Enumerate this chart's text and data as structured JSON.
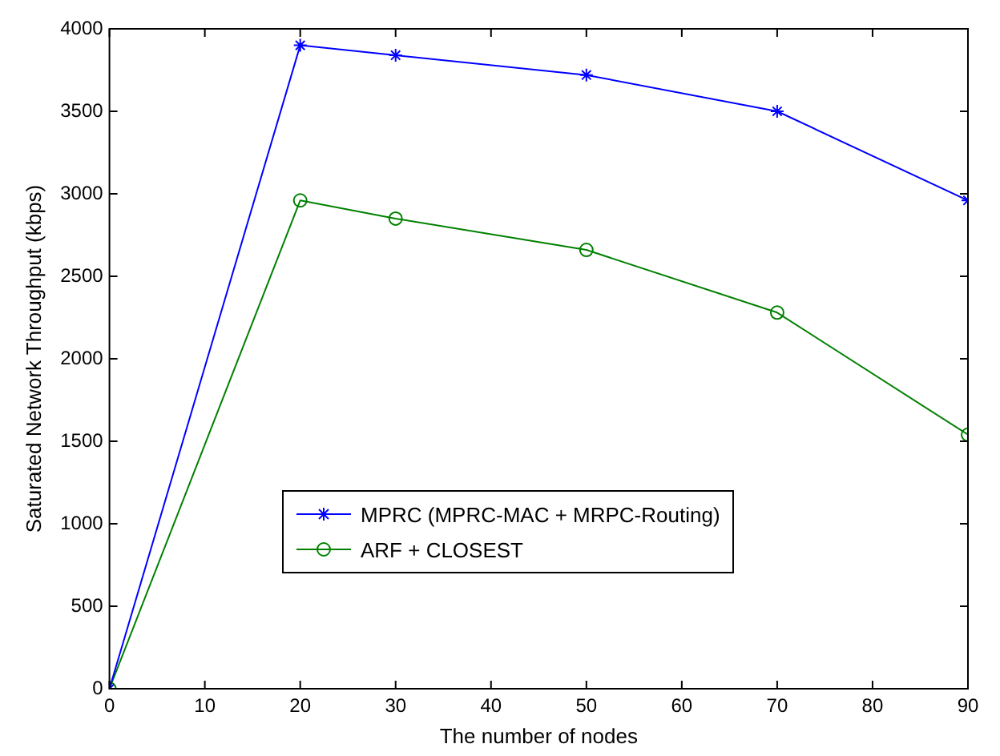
{
  "chart_data": {
    "type": "line",
    "xlabel": "The number of nodes",
    "ylabel": "Saturated Network Throughput (kbps)",
    "x": [
      0,
      20,
      30,
      50,
      70,
      90
    ],
    "xlim": [
      0,
      90
    ],
    "xticks": [
      0,
      10,
      20,
      30,
      40,
      50,
      60,
      70,
      80,
      90
    ],
    "ylim": [
      0,
      4000
    ],
    "yticks": [
      0,
      500,
      1000,
      1500,
      2000,
      2500,
      3000,
      3500,
      4000
    ],
    "grid": false,
    "legend": "bottom",
    "series": [
      {
        "name": "MPRC (MPRC-MAC + MRPC-Routing)",
        "color": "#0000ff",
        "marker": "cross",
        "values": [
          0,
          3900,
          3840,
          3720,
          3500,
          2960
        ]
      },
      {
        "name": "ARF + CLOSEST",
        "color": "#008000",
        "marker": "circle",
        "values": [
          0,
          2960,
          2850,
          2660,
          2280,
          1540
        ]
      }
    ]
  }
}
